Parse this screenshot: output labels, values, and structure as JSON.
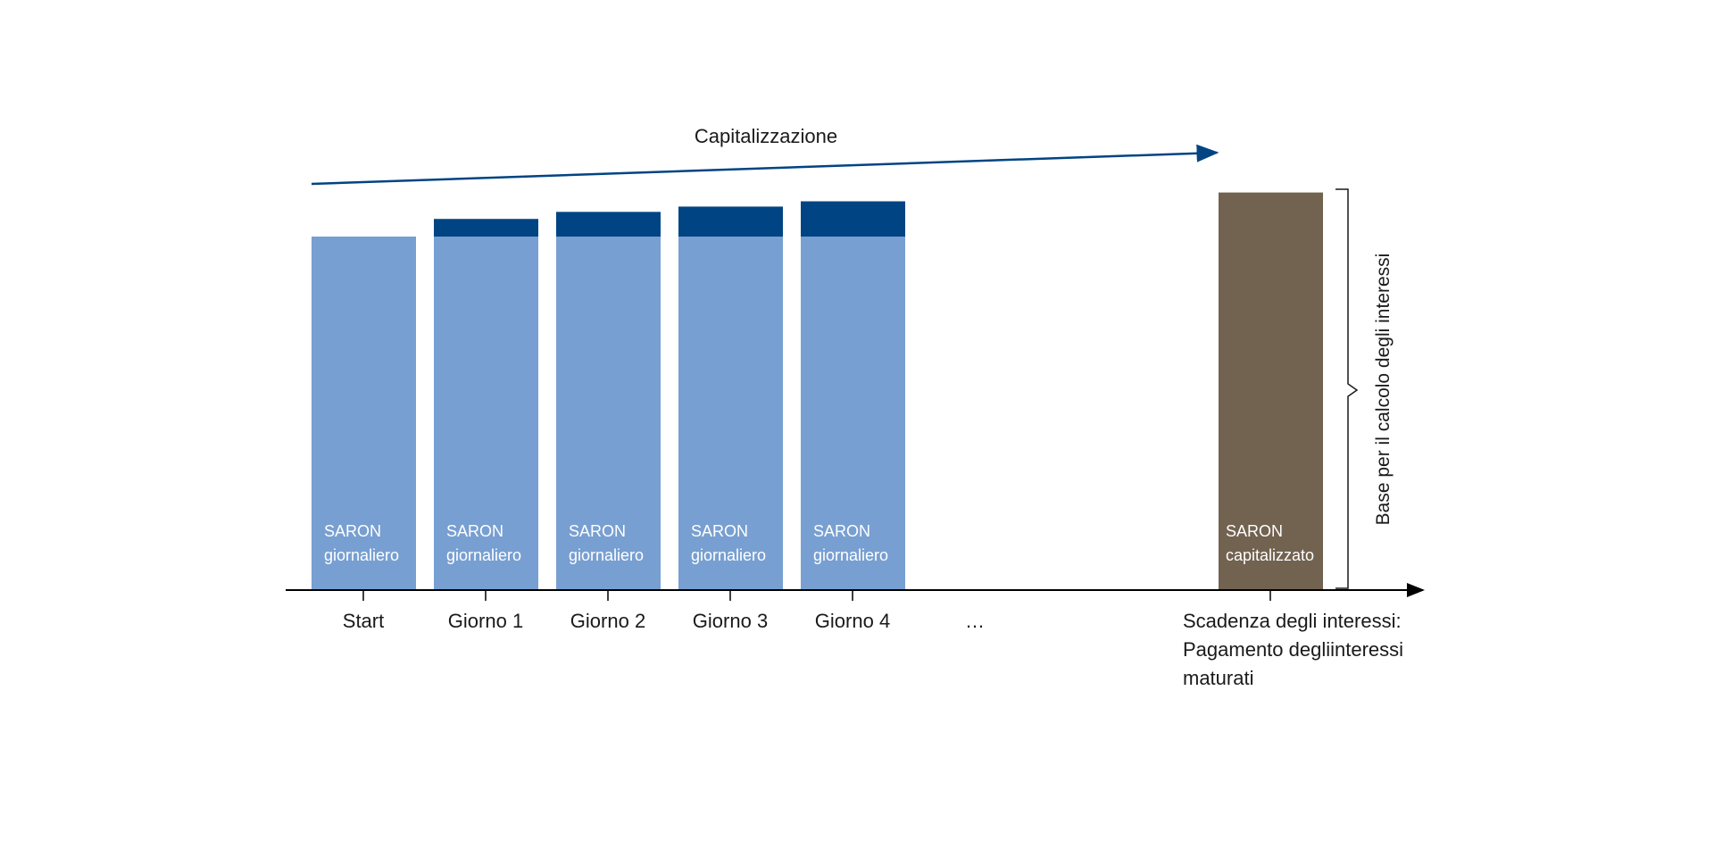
{
  "colors": {
    "base": "#789fd1",
    "increment": "#004483",
    "capitalized": "#726250",
    "axis": "#000000",
    "arrow": "#004483",
    "bar_text": "#ffffff",
    "text": "#1a1a1a"
  },
  "title": "Capitalizzazione",
  "bar_label": {
    "daily_line1": "SARON",
    "daily_line2": "giornaliero",
    "final_line1": "SARON",
    "final_line2": "capitalizzato"
  },
  "x_labels": [
    "Start",
    "Giorno 1",
    "Giorno 2",
    "Giorno 3",
    "Giorno 4",
    "…"
  ],
  "final_label": {
    "line1": "Scadenza degli interessi:",
    "line2": "Pagamento degliinteressi",
    "line3": "maturati"
  },
  "bracket_label": "Base per il calcolo degli interessi",
  "chart_data": {
    "type": "bar",
    "stacked": true,
    "categories": [
      "Start",
      "Giorno 1",
      "Giorno 2",
      "Giorno 3",
      "Giorno 4",
      "Scadenza degli interessi"
    ],
    "series": [
      {
        "name": "SARON giornaliero",
        "values": [
          100,
          100,
          100,
          100,
          100,
          0
        ]
      },
      {
        "name": "",
        "values": [
          0,
          5,
          7,
          8.5,
          10,
          0
        ]
      },
      {
        "name": "SARON capitalizzato",
        "values": [
          0,
          0,
          0,
          0,
          0,
          112.5
        ]
      }
    ]
  }
}
